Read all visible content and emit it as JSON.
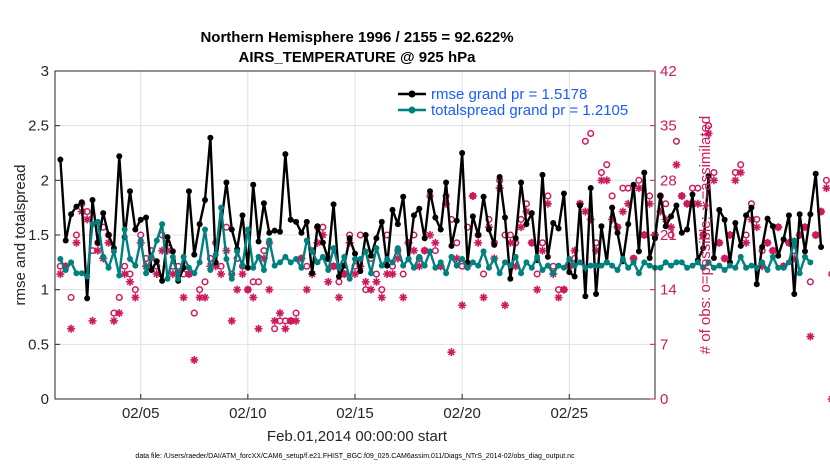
{
  "chart_data": {
    "type": "line",
    "title": "Northern Hemisphere 1996 / 2155 = 92.622%",
    "subtitle": "AIRS_TEMPERATURE @ 925 hPa",
    "xlabel": "Feb.01,2014 00:00:00 start",
    "ylabel_left": "rmse and totalspread",
    "ylabel_right": "# of obs: o=possible; ∗=assimilated",
    "footer": "data file: /Users/raeder/DAI/ATM_forcXX/CAM6_setup/f.e21.FHIST_BGC.f09_025.CAM6assim.011/Diags_NTrS_2014-02/obs_diag_output.nc",
    "x_axis": {
      "range": [
        "2014-02-01 00:00",
        "2014-02-28 24:00"
      ],
      "ticks": [
        "02/05",
        "02/10",
        "02/15",
        "02/20",
        "02/25"
      ]
    },
    "y_left": {
      "range": [
        0,
        3
      ],
      "ticks": [
        "0",
        "0.5",
        "1",
        "1.5",
        "2",
        "2.5",
        "3"
      ]
    },
    "y_right": {
      "range": [
        0,
        42
      ],
      "ticks": [
        "0",
        "7",
        "14",
        "21",
        "28",
        "35",
        "42"
      ]
    },
    "grid": true,
    "legend_position": "top-right",
    "colors": {
      "rmse": "#000000",
      "spread": "#00807f",
      "obs": "#cc1a5c"
    },
    "time_step_hours": 6,
    "series": [
      {
        "name": "rmse grand pr = 1.5178",
        "axis": "left",
        "values": [
          2.19,
          1.45,
          1.69,
          1.76,
          1.8,
          0.92,
          1.82,
          1.43,
          1.7,
          1.5,
          1.38,
          2.22,
          1.48,
          1.9,
          1.55,
          1.64,
          1.66,
          1.18,
          1.26,
          1.08,
          1.48,
          1.35,
          1.08,
          1.2,
          1.9,
          1.32,
          1.6,
          1.82,
          2.39,
          1.25,
          1.6,
          1.98,
          1.55,
          1.37,
          1.68,
          1.2,
          1.96,
          1.44,
          1.79,
          1.52,
          1.54,
          1.53,
          2.24,
          1.64,
          1.62,
          1.52,
          1.62,
          1.15,
          1.58,
          1.43,
          1.28,
          1.78,
          1.12,
          1.22,
          1.47,
          1.33,
          1.17,
          1.5,
          1.31,
          1.47,
          1.62,
          1.22,
          1.73,
          1.6,
          1.85,
          1.28,
          1.68,
          1.74,
          1.47,
          1.9,
          1.66,
          1.55,
          1.98,
          1.4,
          1.63,
          2.25,
          1.25,
          1.67,
          1.5,
          1.85,
          1.55,
          1.41,
          2.03,
          1.66,
          1.1,
          1.47,
          1.98,
          1.6,
          1.7,
          1.27,
          2.05,
          1.3,
          1.61,
          1.56,
          1.88,
          1.16,
          1.12,
          1.77,
          0.94,
          1.93,
          0.96,
          1.58,
          1.25,
          1.75,
          1.52,
          1.26,
          1.6,
          1.96,
          1.35,
          2.07,
          1.29,
          1.47,
          1.86,
          1.58,
          1.67,
          1.77,
          1.52,
          1.55,
          1.87,
          1.27,
          1.38,
          2.04,
          1.29,
          1.73,
          1.64,
          1.25,
          1.61,
          1.4,
          1.68,
          1.75,
          1.05,
          1.39,
          1.65,
          1.58,
          1.31,
          1.46,
          1.68,
          0.96,
          1.69,
          1.35,
          1.69,
          2.06,
          1.39
        ]
      },
      {
        "name": "totalspread grand pr = 1.2105",
        "axis": "left",
        "values": [
          1.28,
          1.18,
          1.25,
          1.15,
          1.15,
          1.12,
          1.6,
          1.62,
          1.3,
          1.2,
          1.35,
          1.13,
          1.55,
          1.28,
          1.22,
          1.45,
          1.15,
          1.3,
          1.45,
          1.6,
          1.1,
          1.3,
          1.1,
          1.3,
          1.2,
          1.15,
          1.25,
          1.55,
          1.18,
          1.32,
          1.75,
          1.28,
          1.1,
          1.35,
          1.22,
          1.55,
          1.2,
          1.3,
          1.18,
          1.45,
          1.22,
          1.25,
          1.3,
          1.25,
          1.28,
          1.2,
          1.45,
          1.35,
          1.25,
          1.3,
          1.18,
          1.38,
          1.2,
          1.3,
          1.1,
          1.28,
          1.28,
          1.35,
          1.15,
          1.38,
          1.22,
          1.28,
          1.25,
          1.38,
          1.22,
          1.28,
          1.2,
          1.3,
          1.22,
          1.35,
          1.2,
          1.25,
          1.15,
          1.3,
          1.22,
          1.28,
          1.2,
          1.25,
          1.22,
          1.35,
          1.2,
          1.28,
          1.15,
          1.25,
          1.22,
          1.3,
          1.15,
          1.25,
          1.2,
          1.3,
          1.18,
          1.22,
          1.15,
          1.22,
          1.2,
          1.28,
          1.22,
          1.25,
          1.2,
          1.22,
          1.22,
          1.22,
          1.25,
          1.22,
          1.18,
          1.28,
          1.2,
          1.25,
          1.15,
          1.25,
          1.22,
          1.2,
          1.2,
          1.25,
          1.22,
          1.25,
          1.25,
          1.2,
          1.22,
          1.25,
          1.2,
          1.25,
          1.2,
          1.22,
          1.18,
          1.22,
          1.2,
          1.3,
          1.2,
          1.22,
          1.2,
          1.25,
          1.18,
          1.3,
          1.2,
          1.2,
          1.25,
          1.45,
          1.15,
          1.3,
          1.25
        ]
      },
      {
        "name": "obs possible",
        "axis": "right",
        "marker": "o",
        "values": [
          17,
          17,
          13,
          21,
          25,
          24,
          19,
          20,
          22,
          21,
          11,
          13,
          17,
          16,
          14,
          21,
          18,
          19,
          17,
          21,
          20,
          17,
          17,
          16,
          16,
          11,
          14,
          15,
          18,
          20,
          17,
          22,
          16,
          18,
          17,
          14,
          15,
          15,
          19,
          20,
          9,
          10,
          10,
          10,
          11,
          18,
          17,
          19,
          22,
          22,
          18,
          17,
          15,
          16,
          21,
          17,
          21,
          14,
          18,
          16,
          14,
          21,
          17,
          19,
          16,
          20,
          21,
          18,
          19,
          26,
          19,
          17,
          26,
          23,
          20,
          17,
          22,
          26,
          21,
          16,
          23,
          20,
          28,
          21,
          21,
          20,
          23,
          25,
          20,
          16,
          20,
          26,
          17,
          14,
          14,
          17,
          18,
          25,
          33,
          34,
          20,
          29,
          30,
          26,
          22,
          27,
          27,
          18,
          28,
          21,
          26,
          21,
          26,
          25,
          21,
          33,
          26,
          25,
          27,
          27,
          21,
          35,
          29,
          20,
          18,
          21,
          29,
          30,
          21,
          25,
          23,
          19,
          20,
          19,
          22,
          17,
          20,
          19,
          21,
          22,
          15,
          21,
          24,
          28,
          16
        ]
      },
      {
        "name": "obs assimilated",
        "axis": "right",
        "marker": "*",
        "values": [
          16,
          17,
          9,
          20,
          24,
          23,
          10,
          19,
          18,
          20,
          10,
          11,
          16,
          15,
          13,
          20,
          17,
          18,
          16,
          19,
          19,
          16,
          16,
          13,
          16,
          5,
          13,
          13,
          17,
          17,
          16,
          19,
          10,
          14,
          16,
          14,
          13,
          9,
          18,
          14,
          10,
          11,
          9,
          10,
          10,
          18,
          14,
          16,
          20,
          21,
          15,
          17,
          13,
          16,
          20,
          16,
          17,
          15,
          14,
          15,
          13,
          16,
          16,
          18,
          13,
          20,
          19,
          17,
          19,
          21,
          20,
          17,
          25,
          6,
          18,
          12,
          17,
          26,
          20,
          13,
          22,
          18,
          27,
          12,
          20,
          17,
          22,
          24,
          20,
          14,
          19,
          25,
          16,
          13,
          14,
          17,
          19,
          25,
          24,
          23,
          19,
          28,
          28,
          23,
          22,
          24,
          25,
          18,
          27,
          21,
          25,
          21,
          24,
          23,
          22,
          30,
          26,
          25,
          25,
          25,
          21,
          34,
          28,
          20,
          18,
          21,
          28,
          29,
          20,
          23,
          22,
          17,
          20,
          19,
          22,
          17,
          20,
          18,
          21,
          22,
          8,
          21,
          24,
          27,
          0
        ]
      }
    ]
  }
}
